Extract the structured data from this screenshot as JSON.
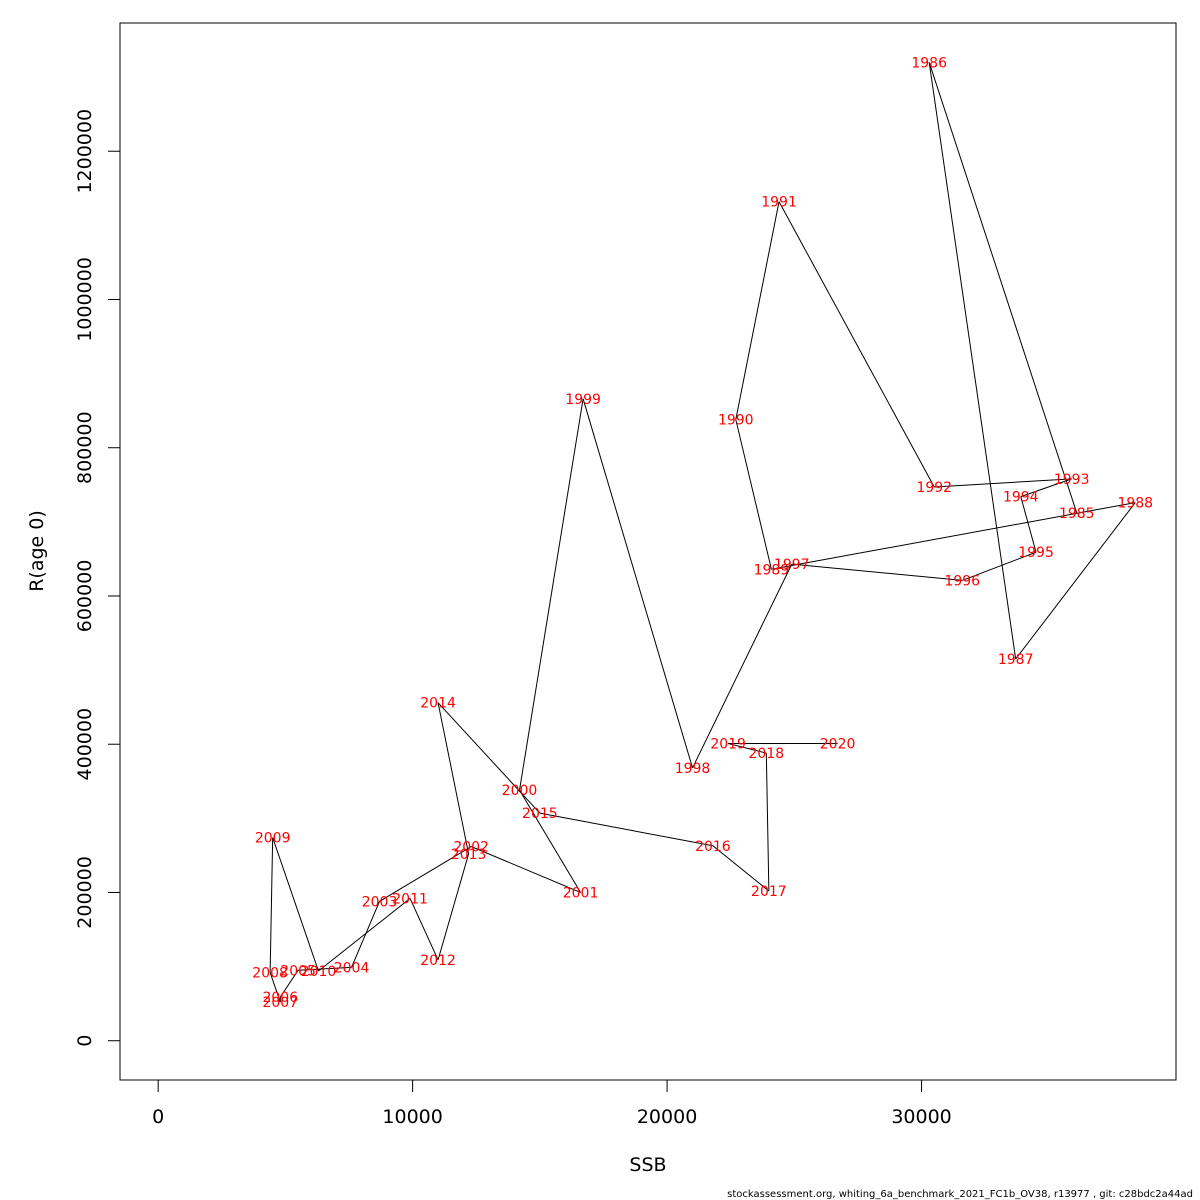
{
  "chart_data": {
    "type": "line",
    "title": "",
    "xlabel": "SSB",
    "ylabel": "R(age 0)",
    "xlim": [
      -1500,
      40000
    ],
    "ylim": [
      -53000,
      1373000
    ],
    "x_ticks": [
      0,
      10000,
      20000,
      30000
    ],
    "y_ticks": [
      0,
      200000,
      400000,
      600000,
      800000,
      1000000,
      1200000
    ],
    "x_tick_labels": [
      "0",
      "10000",
      "20000",
      "30000"
    ],
    "y_tick_labels": [
      "0",
      "200000",
      "400000",
      "600000",
      "800000",
      "1000000",
      "1200000"
    ],
    "grid": false,
    "label_color": "#ff0000",
    "line_color": "#000000",
    "points": [
      {
        "year": "1985",
        "ssb": 36100,
        "r": 712000
      },
      {
        "year": "1986",
        "ssb": 30300,
        "r": 1320000
      },
      {
        "year": "1987",
        "ssb": 33700,
        "r": 515000
      },
      {
        "year": "1988",
        "ssb": 38400,
        "r": 726000
      },
      {
        "year": "1989",
        "ssb": 24100,
        "r": 636000
      },
      {
        "year": "1990",
        "ssb": 22700,
        "r": 838000
      },
      {
        "year": "1991",
        "ssb": 24400,
        "r": 1132000
      },
      {
        "year": "1992",
        "ssb": 30500,
        "r": 747000
      },
      {
        "year": "1993",
        "ssb": 35900,
        "r": 758000
      },
      {
        "year": "1994",
        "ssb": 33900,
        "r": 734000
      },
      {
        "year": "1995",
        "ssb": 34500,
        "r": 659000
      },
      {
        "year": "1996",
        "ssb": 31600,
        "r": 621000
      },
      {
        "year": "1997",
        "ssb": 24900,
        "r": 643000
      },
      {
        "year": "1998",
        "ssb": 21000,
        "r": 368000
      },
      {
        "year": "1999",
        "ssb": 16700,
        "r": 866000
      },
      {
        "year": "2000",
        "ssb": 14200,
        "r": 338000
      },
      {
        "year": "2001",
        "ssb": 16600,
        "r": 200000
      },
      {
        "year": "2002",
        "ssb": 12300,
        "r": 262000
      },
      {
        "year": "2003",
        "ssb": 8700,
        "r": 188000
      },
      {
        "year": "2004",
        "ssb": 7600,
        "r": 99000
      },
      {
        "year": "2005",
        "ssb": 5500,
        "r": 95000
      },
      {
        "year": "2006",
        "ssb": 4800,
        "r": 59000
      },
      {
        "year": "2007",
        "ssb": 4800,
        "r": 52000
      },
      {
        "year": "2008",
        "ssb": 4400,
        "r": 92000
      },
      {
        "year": "2009",
        "ssb": 4500,
        "r": 274000
      },
      {
        "year": "2010",
        "ssb": 6300,
        "r": 94000
      },
      {
        "year": "2011",
        "ssb": 9900,
        "r": 192000
      },
      {
        "year": "2012",
        "ssb": 11000,
        "r": 109000
      },
      {
        "year": "2013",
        "ssb": 12200,
        "r": 252000
      },
      {
        "year": "2014",
        "ssb": 11000,
        "r": 456000
      },
      {
        "year": "2015",
        "ssb": 15000,
        "r": 307000
      },
      {
        "year": "2016",
        "ssb": 21800,
        "r": 263000
      },
      {
        "year": "2017",
        "ssb": 24000,
        "r": 202000
      },
      {
        "year": "2018",
        "ssb": 23900,
        "r": 388000
      },
      {
        "year": "2019",
        "ssb": 22400,
        "r": 401000
      },
      {
        "year": "2020",
        "ssb": 26700,
        "r": 401000
      }
    ]
  },
  "footer": {
    "text": "stockassessment.org, whiting_6a_benchmark_2021_FC1b_OV38, r13977 , git: c28bdc2a44ad"
  }
}
